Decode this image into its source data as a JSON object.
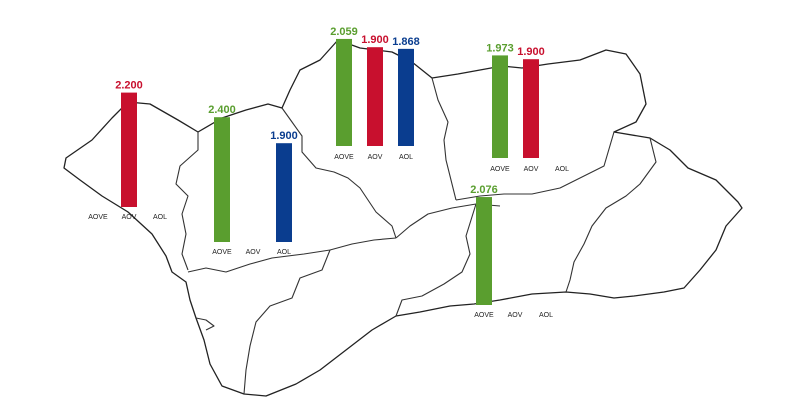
{
  "colors": {
    "AOVE": "#5a9e2f",
    "AOV": "#c8102e",
    "AOL": "#0a3d8f"
  },
  "labels": {
    "AOVE": "AOVE",
    "AOV": "AOV",
    "AOL": "AOL"
  },
  "chart_data": [
    {
      "type": "bar",
      "categories": [
        "AOVE",
        "AOV",
        "AOL"
      ],
      "values": [
        null,
        2.2,
        null
      ],
      "display": [
        "",
        "2.200",
        ""
      ]
    },
    {
      "type": "bar",
      "categories": [
        "AOVE",
        "AOV",
        "AOL"
      ],
      "values": [
        2.4,
        null,
        1.9
      ],
      "display": [
        "2.400",
        "",
        "1.900"
      ]
    },
    {
      "type": "bar",
      "categories": [
        "AOVE",
        "AOV",
        "AOL"
      ],
      "values": [
        2.059,
        1.9,
        1.868
      ],
      "display": [
        "2.059",
        "1.900",
        "1.868"
      ]
    },
    {
      "type": "bar",
      "categories": [
        "AOVE",
        "AOV",
        "AOL"
      ],
      "values": [
        1.973,
        1.9,
        null
      ],
      "display": [
        "1.973",
        "1.900",
        ""
      ]
    },
    {
      "type": "bar",
      "categories": [
        "AOVE",
        "AOV",
        "AOL"
      ],
      "values": [
        2.076,
        null,
        null
      ],
      "display": [
        "2.076",
        "",
        ""
      ]
    }
  ]
}
